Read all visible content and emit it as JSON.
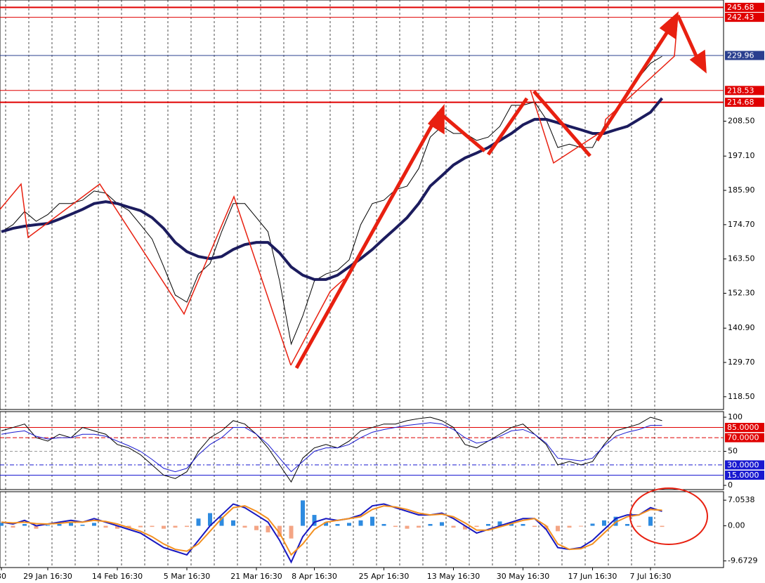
{
  "chart_data": [
    {
      "type": "line",
      "categories": [
        "30",
        null,
        null,
        null,
        "29 Jan 16:30",
        null,
        null,
        null,
        null,
        null,
        "14 Feb 16:30",
        null,
        null,
        null,
        null,
        null,
        "5 Mar 16:30",
        null,
        null,
        null,
        null,
        null,
        "21 Mar 16:30",
        null,
        null,
        null,
        null,
        "8 Apr 16:30",
        null,
        null,
        null,
        null,
        null,
        "25 Apr 16:30",
        null,
        null,
        null,
        null,
        null,
        "13 May 16:30",
        null,
        null,
        null,
        null,
        null,
        "30 May 16:30",
        null,
        null,
        null,
        null,
        null,
        "17 Jun 16:30",
        null,
        null,
        null,
        null,
        "7 Jul 16:30",
        null
      ],
      "series": [
        {
          "color": "#000000",
          "values": [
            172.4,
            174.7,
            179,
            175.8,
            178,
            181.6,
            181.6,
            182.7,
            185.7,
            185,
            181.6,
            179.3,
            174.7,
            170,
            161,
            151.7,
            149.4,
            158.6,
            162,
            172.4,
            181.6,
            181.6,
            177,
            172.4,
            156.3,
            135.7,
            144.9,
            156.3,
            158.6,
            159.8,
            163.2,
            174.7,
            181.6,
            182.7,
            186.1,
            187.3,
            193,
            203.3,
            206.8,
            204.5,
            204.5,
            202.2,
            203.3,
            206.8,
            213.7,
            213.7,
            214.8,
            209.1,
            199.9,
            201,
            199.9,
            199.9,
            206.8,
            211.4,
            218.3,
            222.8,
            227.4,
            229.7
          ]
        },
        {
          "color": "#1c1c5e",
          "values": [
            172.4,
            173.5,
            174.2,
            174.7,
            175.1,
            176.5,
            178.1,
            179.7,
            181.6,
            182.2,
            181.6,
            180.4,
            179.3,
            177,
            173.5,
            168.9,
            165.9,
            164.3,
            163.6,
            164.3,
            166.6,
            168.2,
            168.9,
            168.9,
            165.5,
            160.9,
            158.2,
            156.8,
            156.8,
            158.2,
            160.9,
            163.6,
            166.6,
            170.1,
            173.5,
            177,
            181.6,
            187.3,
            190.7,
            194.2,
            196.5,
            198.1,
            199.9,
            202.2,
            204.5,
            207.3,
            209.1,
            209.1,
            208,
            206.8,
            205.7,
            204.5,
            204.5,
            205.7,
            206.8,
            209.1,
            211.4,
            216
          ]
        }
      ],
      "ylim": [
        114.33,
        248.08
      ],
      "yticks": [
        {
          "value": 118.5,
          "label": "118.50"
        },
        {
          "value": 129.7,
          "label": "129.70"
        },
        {
          "value": 140.9,
          "label": "140.90"
        },
        {
          "value": 152.3,
          "label": "152.30"
        },
        {
          "value": 163.5,
          "label": "163.50"
        },
        {
          "value": 174.7,
          "label": "174.70"
        },
        {
          "value": 185.9,
          "label": "185.90"
        },
        {
          "value": 197.1,
          "label": "197.10"
        },
        {
          "value": 208.5,
          "label": "208.50"
        }
      ],
      "levels": [
        {
          "value": 245.68,
          "color": "#e00000"
        },
        {
          "value": 242.43,
          "color": "#e00000"
        },
        {
          "value": 229.96,
          "color": "#2a3f8f"
        },
        {
          "value": 218.53,
          "color": "#e00000"
        },
        {
          "value": 214.68,
          "color": "#e00000"
        }
      ]
    },
    {
      "type": "line",
      "series": [
        {
          "color": "#000000",
          "values": [
            80,
            85,
            90,
            70,
            65,
            75,
            70,
            85,
            80,
            75,
            60,
            55,
            45,
            30,
            15,
            10,
            20,
            50,
            70,
            80,
            95,
            90,
            75,
            55,
            30,
            5,
            40,
            55,
            60,
            55,
            65,
            80,
            85,
            90,
            90,
            95,
            98,
            100,
            95,
            85,
            60,
            55,
            65,
            75,
            85,
            90,
            75,
            60,
            30,
            35,
            30,
            35,
            60,
            80,
            85,
            90,
            100,
            95
          ]
        },
        {
          "color": "#1818d0",
          "values": [
            75,
            78,
            80,
            72,
            68,
            70,
            70,
            75,
            75,
            72,
            65,
            58,
            50,
            38,
            25,
            20,
            25,
            45,
            60,
            70,
            85,
            85,
            75,
            60,
            40,
            20,
            35,
            50,
            55,
            55,
            60,
            70,
            78,
            82,
            85,
            88,
            90,
            92,
            90,
            82,
            70,
            62,
            65,
            72,
            80,
            82,
            75,
            62,
            40,
            38,
            36,
            40,
            58,
            72,
            78,
            82,
            88,
            88
          ]
        }
      ],
      "ylim": [
        0,
        100
      ],
      "yticks": [
        0,
        50,
        100
      ],
      "levels": [
        {
          "value": 85,
          "label": "85.0000",
          "color": "#e00000",
          "style": "solid"
        },
        {
          "value": 70,
          "label": "70.0000",
          "color": "#e00000",
          "style": "dashed"
        },
        {
          "value": 30,
          "label": "30.0000",
          "color": "#1818d0",
          "style": "dashed"
        },
        {
          "value": 15,
          "label": "15.0000",
          "color": "#1818d0",
          "style": "solid"
        }
      ]
    },
    {
      "type": "macd",
      "series": [
        {
          "color": "#1818c0",
          "values": [
            1,
            0.5,
            1.5,
            0,
            0.5,
            1,
            1.5,
            1,
            2,
            1,
            0,
            -1,
            -2,
            -4,
            -6,
            -7,
            -8,
            -4,
            0,
            3,
            6,
            5,
            3,
            1,
            -4,
            -10,
            -3,
            1,
            2,
            1.5,
            2,
            3,
            5.5,
            6,
            5,
            4,
            3,
            3,
            3.5,
            2,
            0,
            -2,
            -1,
            0,
            1,
            2,
            2,
            -1,
            -6,
            -6.5,
            -6,
            -4,
            -1,
            2,
            3,
            3,
            5,
            4
          ]
        },
        {
          "color": "#f39020",
          "values": [
            1,
            0.8,
            1,
            0.6,
            0.5,
            0.7,
            1,
            1,
            1.5,
            1.2,
            0.5,
            -0.5,
            -1.5,
            -3,
            -5,
            -6.5,
            -7,
            -5,
            -1.5,
            2,
            5,
            5.5,
            4,
            2,
            -2,
            -8,
            -5,
            -1,
            1,
            1.5,
            2,
            2.5,
            4.5,
            5.5,
            5.2,
            4.5,
            3.5,
            3,
            3.2,
            2.5,
            0.8,
            -1.2,
            -1.2,
            -0.3,
            0.6,
            1.5,
            2,
            0,
            -5,
            -6.5,
            -6.3,
            -5,
            -2,
            1,
            2.5,
            3,
            4.5,
            4.3
          ]
        }
      ],
      "histogram": {
        "colors": [
          "#2e8be0",
          "#f4a585"
        ],
        "values": [
          0.8,
          -0.5,
          0.5,
          -0.8,
          0.2,
          0.5,
          0.8,
          0.3,
          0.8,
          -0.5,
          -0.8,
          -0.6,
          -0.4,
          -0.3,
          -0.8,
          -0.5,
          -0.3,
          2,
          3.5,
          2.5,
          1.5,
          -0.5,
          -1.2,
          -1.8,
          -3,
          -3.5,
          7,
          3,
          1,
          0.5,
          0.8,
          1.5,
          2.5,
          0.5,
          -0.3,
          -0.8,
          -0.5,
          0.5,
          1,
          -0.5,
          -1,
          -0.3,
          0.5,
          1.2,
          0.8,
          0.5,
          -0.3,
          -1,
          -1.5,
          -0.5,
          -0.2,
          0.6,
          1.5,
          2.5,
          0.5,
          -0.3,
          2.5,
          -0.3
        ]
      },
      "ylim": [
        -11.5,
        9.4
      ],
      "yticks": [
        -9.6729,
        {
          "value": 0,
          "label": "0.00"
        },
        7.0538
      ]
    }
  ]
}
